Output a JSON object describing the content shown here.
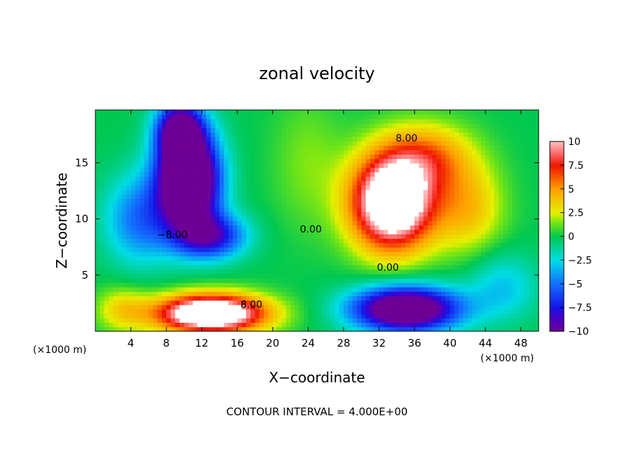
{
  "chart_data": {
    "type": "heatmap",
    "title": "zonal velocity",
    "xlabel": "X−coordinate",
    "ylabel": "Z−coordinate",
    "x_unit_label": "(×1000 m)",
    "z_unit_label": "(×1000 m)",
    "footer": "CONTOUR INTERVAL = 4.000E+00",
    "xlim": [
      0,
      50
    ],
    "ylim": [
      0,
      19.7
    ],
    "x_ticks": [
      4,
      8,
      12,
      16,
      20,
      24,
      28,
      32,
      36,
      40,
      44,
      48
    ],
    "y_ticks": [
      5,
      10,
      15
    ],
    "colorbar": {
      "range": [
        -10,
        10
      ],
      "ticks": [
        {
          "value": 10,
          "label": "10"
        },
        {
          "value": 7.5,
          "label": "7.5"
        },
        {
          "value": 5,
          "label": "5"
        },
        {
          "value": 2.5,
          "label": "2.5"
        },
        {
          "value": 0,
          "label": "0"
        },
        {
          "value": -2.5,
          "label": "−2.5"
        },
        {
          "value": -5,
          "label": "−5"
        },
        {
          "value": -7.5,
          "label": "−7.5"
        },
        {
          "value": -10,
          "label": "−10"
        }
      ],
      "saturated_color": "#ffffff"
    },
    "contour_labels": [
      {
        "text": "8.00",
        "x": 35.1,
        "z": 17.2
      },
      {
        "text": "−8.00",
        "x": 8.7,
        "z": 8.6
      },
      {
        "text": "0.00",
        "x": 24.3,
        "z": 9.1
      },
      {
        "text": "0.00",
        "x": 33.0,
        "z": 5.7
      },
      {
        "text": "8.00",
        "x": 17.6,
        "z": 2.4
      }
    ],
    "field_features": [
      {
        "x": 10.5,
        "z": 13.5,
        "amp": -17,
        "sx": 3.4,
        "sz": 4.2
      },
      {
        "x": 13.0,
        "z": 8.5,
        "amp": -8,
        "sx": 4.0,
        "sz": 2.0
      },
      {
        "x": 9.5,
        "z": 18.0,
        "amp": -10,
        "sx": 2.6,
        "sz": 2.5
      },
      {
        "x": 5.0,
        "z": 10.0,
        "amp": -5,
        "sx": 4.0,
        "sz": 4.0
      },
      {
        "x": 33.5,
        "z": 11.5,
        "amp": 15,
        "sx": 4.6,
        "sz": 4.2
      },
      {
        "x": 37.5,
        "z": 15.5,
        "amp": 5,
        "sx": 5.0,
        "sz": 3.0
      },
      {
        "x": 42.0,
        "z": 11.0,
        "amp": 4,
        "sx": 4.0,
        "sz": 4.0
      },
      {
        "x": 13.0,
        "z": 1.6,
        "amp": 15,
        "sx": 6.2,
        "sz": 1.7
      },
      {
        "x": 35.0,
        "z": 2.0,
        "amp": -14,
        "sx": 6.0,
        "sz": 2.0
      },
      {
        "x": 3.0,
        "z": 2.0,
        "amp": 3,
        "sx": 3.0,
        "sz": 2.0
      },
      {
        "x": 46.0,
        "z": 4.0,
        "amp": -3,
        "sx": 4.0,
        "sz": 3.0
      },
      {
        "x": 24.0,
        "z": 15.0,
        "amp": 1.5,
        "sx": 4.0,
        "sz": 6.0
      }
    ]
  }
}
